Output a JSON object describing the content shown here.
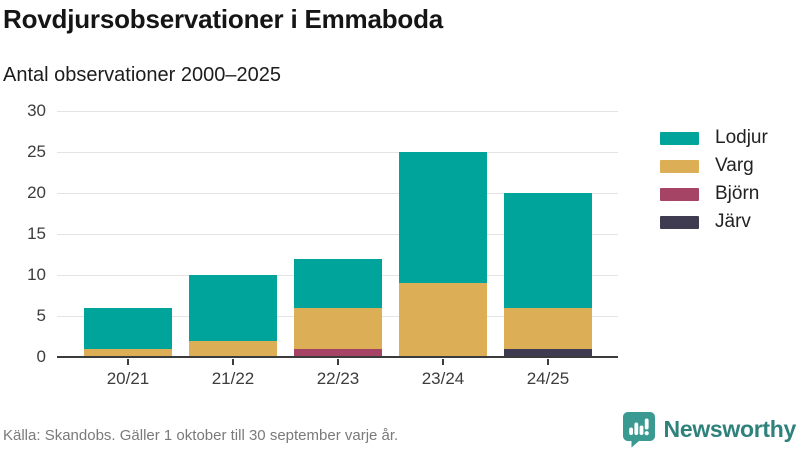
{
  "header": {
    "title": "Rovdjursobservationer i Emmaboda",
    "subtitle": "Antal observationer 2000–2025"
  },
  "chart_data": {
    "type": "bar",
    "stacked": true,
    "title": "Rovdjursobservationer i Emmaboda",
    "subtitle": "Antal observationer 2000–2025",
    "categories": [
      "20/21",
      "21/22",
      "22/23",
      "23/24",
      "24/25"
    ],
    "series": [
      {
        "name": "Lodjur",
        "color": "#00a49b",
        "values": [
          5,
          8,
          6,
          16,
          14
        ]
      },
      {
        "name": "Varg",
        "color": "#dcae56",
        "values": [
          1,
          2,
          5,
          9,
          5
        ]
      },
      {
        "name": "Björn",
        "color": "#a64466",
        "values": [
          0,
          0,
          1,
          0,
          0
        ]
      },
      {
        "name": "Järv",
        "color": "#3f3c52",
        "values": [
          0,
          0,
          0,
          0,
          1
        ]
      }
    ],
    "totals": [
      6,
      10,
      12,
      25,
      20
    ],
    "stack_order_bottom_to_top": [
      "Järv",
      "Björn",
      "Varg",
      "Lodjur"
    ],
    "ylim": [
      0,
      30
    ],
    "yticks": [
      0,
      5,
      10,
      15,
      20,
      25,
      30
    ],
    "grid": true,
    "legend_position": "right",
    "colors": {
      "gridline": "#e4e4e4",
      "axis": "#3b3b3b",
      "tick_label": "#3d3d3d"
    }
  },
  "footer": {
    "source": "Källa: Skandobs. Gäller 1 oktober till 30 september varje år.",
    "brand": "Newsworthy",
    "brand_color": "#2f827c",
    "brand_icon_color": "#3a9a92"
  }
}
